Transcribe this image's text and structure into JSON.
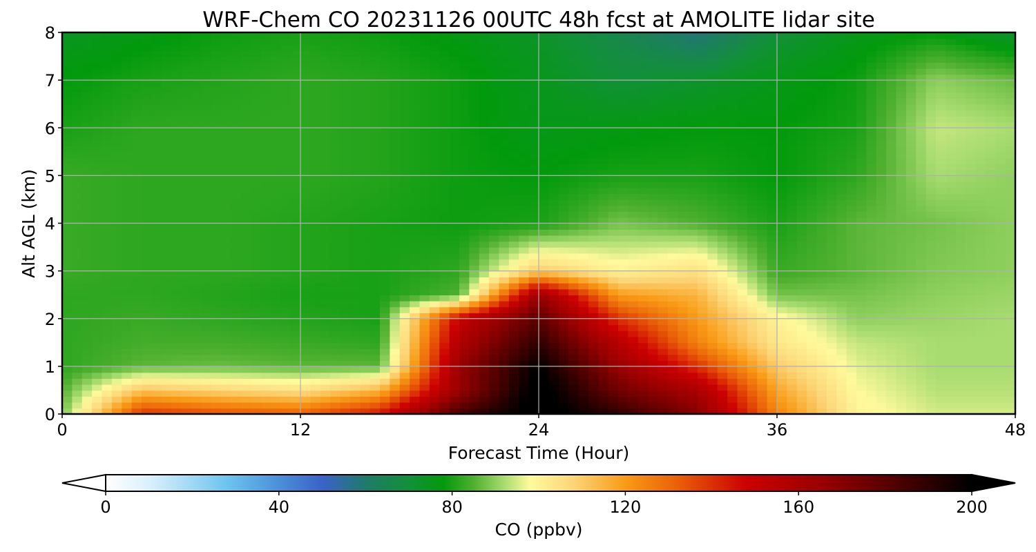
{
  "chart_data": {
    "type": "heatmap",
    "title": "WRF-Chem CO  20231126 00UTC 48h fcst at AMOLITE lidar site",
    "xlabel": "Forecast Time (Hour)",
    "ylabel": "Alt AGL (km)",
    "xlim": [
      0,
      48
    ],
    "ylim": [
      0,
      8
    ],
    "xticks": [
      "0",
      "12",
      "24",
      "36",
      "48"
    ],
    "yticks": [
      "0",
      "1",
      "2",
      "3",
      "4",
      "5",
      "6",
      "7",
      "8"
    ],
    "grid": true,
    "x": [
      0,
      4,
      8,
      12,
      16,
      20,
      24,
      28,
      32,
      36,
      40,
      44,
      48
    ],
    "y": [
      0,
      0.5,
      1,
      1.5,
      2,
      2.5,
      3,
      4,
      5,
      6,
      7,
      8
    ],
    "z": [
      [
        88,
        140,
        135,
        132,
        145,
        185,
        205,
        190,
        170,
        125,
        100,
        95,
        95
      ],
      [
        85,
        112,
        108,
        105,
        115,
        165,
        205,
        175,
        160,
        118,
        98,
        93,
        93
      ],
      [
        82,
        86,
        87,
        86,
        86,
        165,
        200,
        165,
        140,
        110,
        96,
        92,
        92
      ],
      [
        82,
        84,
        84,
        83,
        82,
        158,
        190,
        155,
        125,
        103,
        94,
        92,
        92
      ],
      [
        82,
        83,
        82,
        81,
        80,
        150,
        180,
        140,
        120,
        100,
        90,
        91,
        92
      ],
      [
        82,
        82,
        81,
        80,
        80,
        85,
        165,
        120,
        115,
        88,
        88,
        90,
        91
      ],
      [
        83,
        82,
        82,
        81,
        80,
        82,
        110,
        100,
        105,
        83,
        86,
        89,
        90
      ],
      [
        83,
        82,
        82,
        81,
        80,
        79,
        80,
        88,
        85,
        80,
        86,
        88,
        90
      ],
      [
        83,
        82,
        82,
        82,
        81,
        79,
        78,
        80,
        80,
        78,
        82,
        92,
        90
      ],
      [
        80,
        82,
        82,
        82,
        81,
        79,
        76,
        77,
        78,
        78,
        80,
        94,
        92
      ],
      [
        78,
        80,
        81,
        82,
        81,
        79,
        75,
        70,
        72,
        76,
        79,
        90,
        87
      ],
      [
        74,
        77,
        79,
        80,
        79,
        77,
        73,
        66,
        58,
        70,
        76,
        78,
        72
      ]
    ],
    "colorbar": {
      "label": "CO  (ppbv)",
      "ticks": [
        "0",
        "40",
        "80",
        "120",
        "160",
        "200"
      ],
      "range": [
        0,
        200
      ],
      "extend": "both",
      "stops": [
        [
          0,
          "#ffffff"
        ],
        [
          10,
          "#dbf0fb"
        ],
        [
          20,
          "#9fd8f4"
        ],
        [
          28,
          "#6cc4f0"
        ],
        [
          40,
          "#4a90d9"
        ],
        [
          50,
          "#3a62c8"
        ],
        [
          60,
          "#1f7a6a"
        ],
        [
          70,
          "#129038"
        ],
        [
          78,
          "#029a0c"
        ],
        [
          85,
          "#4fb02f"
        ],
        [
          92,
          "#a8dc70"
        ],
        [
          98,
          "#fffa9c"
        ],
        [
          108,
          "#fcd577"
        ],
        [
          120,
          "#f99b16"
        ],
        [
          132,
          "#ea6008"
        ],
        [
          148,
          "#cc0000"
        ],
        [
          165,
          "#9a0000"
        ],
        [
          182,
          "#520000"
        ],
        [
          200,
          "#000000"
        ]
      ]
    }
  }
}
